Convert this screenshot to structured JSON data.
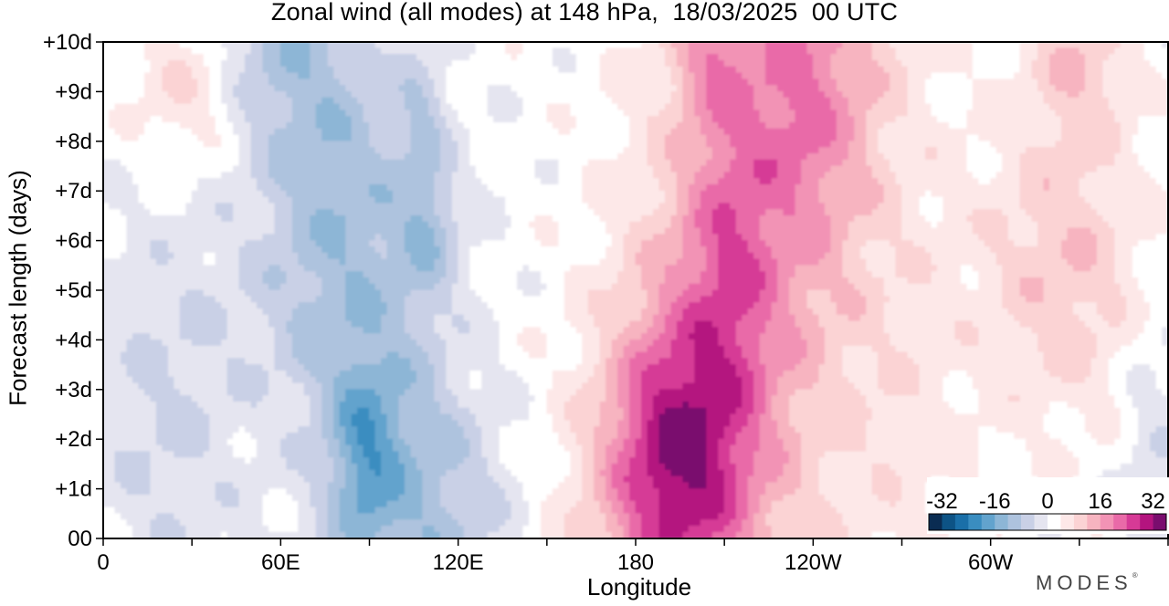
{
  "chart_data": {
    "type": "heatmap",
    "title": "Zonal wind (all modes) at 148 hPa,  18/03/2025  00 UTC",
    "xlabel": "Longitude",
    "ylabel": "Forecast length (days)",
    "x_ticks": [
      "0",
      "60E",
      "120E",
      "180",
      "120W",
      "60W"
    ],
    "x_tick_values": [
      0,
      60,
      120,
      180,
      240,
      300
    ],
    "y_ticks": [
      "00",
      "+1d",
      "+2d",
      "+3d",
      "+4d",
      "+5d",
      "+6d",
      "+7d",
      "+8d",
      "+9d",
      "+10d"
    ],
    "xlim": [
      0,
      360
    ],
    "ylim": [
      0,
      10
    ],
    "colorbar": {
      "tick_labels": [
        "-32",
        "-16",
        "0",
        "16",
        "32"
      ],
      "tick_values": [
        -32,
        -16,
        0,
        16,
        32
      ],
      "levels": [
        -36,
        -32,
        -28,
        -24,
        -20,
        -16,
        -12,
        -8,
        -4,
        0,
        4,
        8,
        12,
        16,
        20,
        24,
        28,
        32,
        36
      ],
      "colors": [
        "#0a2c52",
        "#0d5385",
        "#1a6fa8",
        "#3a8dc0",
        "#62a3cd",
        "#8db6d6",
        "#aec3de",
        "#c9d0e6",
        "#e5e5f0",
        "#ffffff",
        "#fde8e8",
        "#fbd3d4",
        "#f7b4c0",
        "#f293b5",
        "#e96aa8",
        "#d63a96",
        "#b4147f",
        "#7a0d6e"
      ],
      "placement": "bottom-right"
    },
    "field_description_points": [
      {
        "lon": 0,
        "day": 0,
        "value": 2
      },
      {
        "lon": 100,
        "day": 1.5,
        "value": -18
      },
      {
        "lon": 110,
        "day": 8,
        "value": -16
      },
      {
        "lon": 195,
        "day": 1.5,
        "value": 34
      },
      {
        "lon": 210,
        "day": 6,
        "value": 24
      },
      {
        "lon": 325,
        "day": 5.5,
        "value": 14
      }
    ]
  },
  "branding": {
    "logo": "MODES"
  }
}
